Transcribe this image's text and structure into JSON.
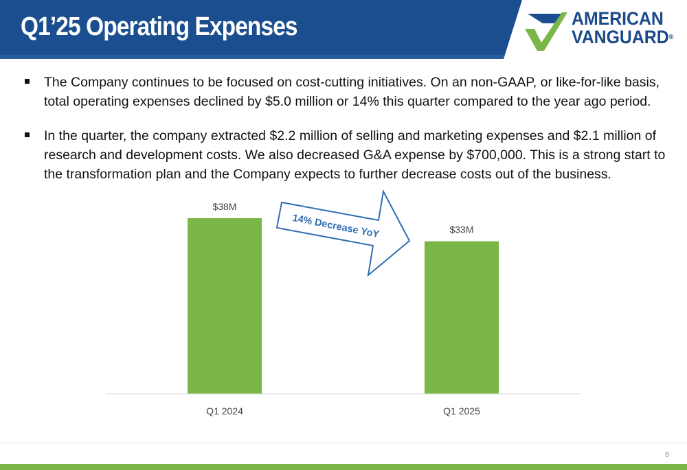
{
  "header": {
    "title": "Q1’25 Operating Expenses",
    "logo_line1": "AMERICAN",
    "logo_line2": "VANGUARD",
    "logo_reg": "®"
  },
  "bullets": [
    "The Company continues to be focused on cost-cutting initiatives. On an non-GAAP, or like-for-like basis, total operating expenses declined by $5.0 million or 14% this quarter compared to the year ago period.",
    "In the quarter, the company extracted $2.2 million of selling and marketing expenses and $2.1 million of research and development costs. We also decreased G&A expense by $700,000.  This is a strong start to the transformation plan and the Company expects to further decrease costs out of the business."
  ],
  "chart_data": {
    "type": "bar",
    "categories": [
      "Q1 2024",
      "Q1 2025"
    ],
    "values": [
      38,
      33
    ],
    "data_labels": [
      "$38M",
      "$33M"
    ],
    "title": "",
    "xlabel": "",
    "ylabel": "",
    "ylim": [
      0,
      38
    ],
    "bar_color": "#7ab648",
    "annotation": "14% Decrease YoY"
  },
  "colors": {
    "header_blue": "#1b4e8e",
    "accent_green": "#7ab648",
    "arrow_blue": "#2e6db4"
  },
  "footer": {
    "page_number": "8"
  }
}
